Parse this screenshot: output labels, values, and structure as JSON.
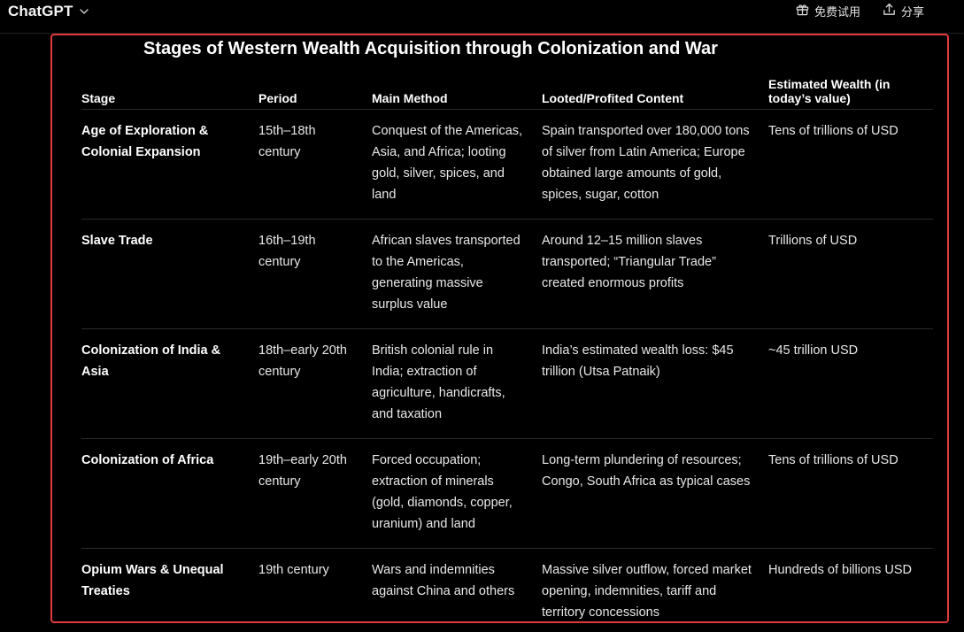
{
  "topbar": {
    "brand": "ChatGPT",
    "actions": [
      {
        "icon": "gift-icon",
        "label": "免费试用"
      },
      {
        "icon": "share-icon",
        "label": "分享"
      }
    ]
  },
  "content": {
    "title": "Stages of Western Wealth Acquisition through Colonization and War",
    "headers": [
      "Stage",
      "Period",
      "Main Method",
      "Looted/Profited Content",
      "Estimated Wealth (in today’s value)"
    ],
    "rows": [
      {
        "stage": "Age of Exploration & Colonial Expansion",
        "period": "15th–18th century",
        "method": "Conquest of the Americas, Asia, and Africa; looting gold, silver, spices, and land",
        "content": "Spain transported over 180,000 tons of silver from Latin America; Europe obtained large amounts of gold, spices, sugar, cotton",
        "wealth": "Tens of trillions of USD"
      },
      {
        "stage": "Slave Trade",
        "period": "16th–19th century",
        "method": "African slaves transported to the Americas, generating massive surplus value",
        "content": "Around 12–15 million slaves transported; “Triangular Trade” created enormous profits",
        "wealth": "Trillions of USD"
      },
      {
        "stage": "Colonization of India & Asia",
        "period": "18th–early 20th century",
        "method": "British colonial rule in India; extraction of agriculture, handicrafts, and taxation",
        "content": "India’s estimated wealth loss: $45 trillion (Utsa Patnaik)",
        "wealth": "~45 trillion USD"
      },
      {
        "stage": "Colonization of Africa",
        "period": "19th–early 20th century",
        "method": "Forced occupation; extraction of minerals (gold, diamonds, copper, uranium) and land",
        "content": "Long-term plundering of resources; Congo, South Africa as typical cases",
        "wealth": "Tens of trillions of USD"
      },
      {
        "stage": "Opium Wars & Unequal Treaties",
        "period": "19th century",
        "method": "Wars and indemnities against China and others",
        "content": "Massive silver outflow, forced market opening, indemnities, tariff and territory concessions",
        "wealth": "Hundreds of billions USD"
      }
    ]
  },
  "colors": {
    "background": "#000000",
    "highlight_border": "#e0393e",
    "text": "#ececec",
    "row_divider": "#2a2a2a"
  }
}
